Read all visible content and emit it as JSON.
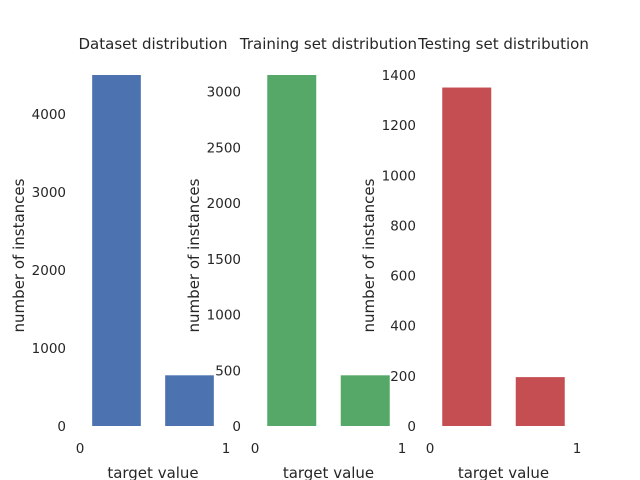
{
  "chart_data": [
    {
      "type": "bar",
      "title": "Dataset distribution",
      "xlabel": "target value",
      "ylabel": "number of instances",
      "categories": [
        "0",
        "1"
      ],
      "values": [
        4500,
        650
      ],
      "color": "#4c72b0",
      "xlim": [
        0,
        1
      ],
      "ylim": [
        0,
        4500
      ],
      "xticks": [
        0,
        1
      ],
      "yticks": [
        0,
        1000,
        2000,
        3000,
        4000
      ],
      "grid": false
    },
    {
      "type": "bar",
      "title": "Training set distribution",
      "xlabel": "target value",
      "ylabel": "number of instances",
      "categories": [
        "0",
        "1"
      ],
      "values": [
        3150,
        455
      ],
      "color": "#55a868",
      "xlim": [
        0,
        1
      ],
      "ylim": [
        0,
        3150
      ],
      "xticks": [
        0,
        1
      ],
      "yticks": [
        0,
        500,
        1000,
        1500,
        2000,
        2500,
        3000
      ],
      "grid": false
    },
    {
      "type": "bar",
      "title": "Testing set distribution",
      "xlabel": "target value",
      "ylabel": "number of instances",
      "categories": [
        "0",
        "1"
      ],
      "values": [
        1350,
        195
      ],
      "color": "#c44e52",
      "xlim": [
        0,
        1
      ],
      "ylim": [
        0,
        1400
      ],
      "xticks": [
        0,
        1
      ],
      "yticks": [
        0,
        200,
        400,
        600,
        800,
        1000,
        1200,
        1400
      ],
      "grid": false
    }
  ]
}
